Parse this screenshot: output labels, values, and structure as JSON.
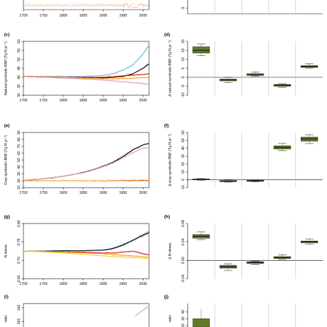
{
  "palette": {
    "observed": "#000000",
    "exp_a": "#6ab7e6",
    "exp_b": "#e8a0a0",
    "exp_c": "#d62020",
    "exp_d": "#f4a020",
    "exp_e": "#f0d040",
    "box_fill": "#5f7a2a",
    "box_fill_edge": "#2e3a12",
    "separator": "#b0b0b0"
  },
  "chart_data": [
    {
      "panel": "(c)",
      "type": "line",
      "ylabel": "Natural symbiotic BNF (Tg N yr⁻¹)",
      "xlim": [
        1700,
        2015
      ],
      "ylim": [
        30,
        60
      ],
      "xticks": [
        1700,
        1750,
        1800,
        1850,
        1900,
        1950,
        2000
      ],
      "yticks": [
        30,
        35,
        40,
        45,
        50,
        55,
        60
      ],
      "series": [
        {
          "color_key": "exp_a",
          "x": [
            1700,
            1750,
            1800,
            1850,
            1900,
            1925,
            1950,
            1975,
            2000,
            2015
          ],
          "y": [
            40.5,
            40.5,
            40.5,
            40.5,
            41,
            42,
            44,
            47,
            53,
            58
          ]
        },
        {
          "color_key": "observed",
          "x": [
            1700,
            1750,
            1800,
            1850,
            1900,
            1925,
            1950,
            1975,
            2000,
            2015
          ],
          "y": [
            40.5,
            40,
            40,
            39.8,
            39.7,
            40,
            40.5,
            42,
            45,
            47.5
          ]
        },
        {
          "color_key": "exp_c",
          "x": [
            1700,
            1750,
            1800,
            1850,
            1900,
            1925,
            1950,
            1975,
            2000,
            2015
          ],
          "y": [
            40.5,
            40.3,
            40,
            40,
            40,
            40.3,
            40.8,
            41.2,
            41.5,
            42
          ]
        },
        {
          "color_key": "exp_d",
          "x": [
            1700,
            1750,
            1800,
            1850,
            1900,
            1925,
            1950,
            1975,
            2000,
            2015
          ],
          "y": [
            40.5,
            40.3,
            40,
            39.5,
            39.2,
            39.2,
            39.3,
            39.5,
            39.8,
            40
          ]
        },
        {
          "color_key": "exp_b",
          "x": [
            1700,
            1750,
            1800,
            1850,
            1900,
            1925,
            1950,
            1975,
            2000,
            2015
          ],
          "y": [
            40.5,
            40,
            39.5,
            39,
            38.5,
            38,
            37.5,
            37,
            36.5,
            36
          ]
        }
      ]
    },
    {
      "panel": "(d)",
      "type": "bar",
      "ylabel": "Δ natural symbiotic BNF (Tg N yr⁻¹)",
      "ylim": [
        -10,
        20
      ],
      "yticks": [
        -10,
        -5,
        0,
        5,
        10,
        15,
        20
      ],
      "boxes": [
        {
          "median": 15,
          "q1": 13.5,
          "q3": 17,
          "lo": 12,
          "hi": 18.5
        },
        {
          "median": -1.5,
          "q1": -2,
          "q3": -1,
          "lo": -3,
          "hi": 0
        },
        {
          "median": 1.5,
          "q1": 1,
          "q3": 2,
          "lo": 0.5,
          "hi": 3
        },
        {
          "median": -4.5,
          "q1": -5,
          "q3": -4,
          "lo": -5.5,
          "hi": -3.5
        },
        {
          "median": 6,
          "q1": 5.5,
          "q3": 6.5,
          "lo": 5,
          "hi": 7.5
        }
      ]
    },
    {
      "panel": "(e)",
      "type": "line",
      "ylabel": "Crop symbiotic BNF (Tg N yr⁻¹)",
      "xlim": [
        1700,
        2015
      ],
      "ylim": [
        10,
        90
      ],
      "xticks": [
        1700,
        1750,
        1800,
        1850,
        1900,
        1950,
        2000
      ],
      "yticks": [
        10,
        20,
        30,
        40,
        50,
        60,
        70,
        80,
        90
      ],
      "series": [
        {
          "color_key": "observed",
          "x": [
            1700,
            1725,
            1750,
            1775,
            1800,
            1825,
            1850,
            1875,
            1900,
            1925,
            1950,
            1975,
            2000,
            2015
          ],
          "y": [
            20.5,
            21.5,
            23,
            24.5,
            26.5,
            29,
            32,
            36,
            41,
            47,
            55,
            65,
            72,
            74
          ]
        },
        {
          "color_key": "exp_b",
          "x": [
            1700,
            1725,
            1750,
            1775,
            1800,
            1825,
            1850,
            1875,
            1900,
            1925,
            1950,
            1975,
            2000,
            2015
          ],
          "y": [
            20.5,
            21.5,
            23,
            24.5,
            26.5,
            29,
            31.5,
            35.5,
            40.5,
            46,
            53,
            61,
            67,
            68
          ]
        },
        {
          "color_key": "exp_c",
          "x": [
            1700,
            1800,
            1900,
            2000,
            2015
          ],
          "y": [
            20,
            20,
            20,
            20.5,
            20.5
          ]
        },
        {
          "color_key": "exp_d",
          "x": [
            1700,
            1800,
            1900,
            2000,
            2015
          ],
          "y": [
            20,
            20,
            20,
            20,
            20
          ]
        }
      ]
    },
    {
      "panel": "(f)",
      "type": "bar",
      "ylabel": "Δ crop symbiotic BNF (Tg N yr⁻¹)",
      "ylim": [
        -10,
        60
      ],
      "yticks": [
        -10,
        0,
        10,
        20,
        30,
        40,
        50,
        60
      ],
      "boxes": [
        {
          "median": 0.5,
          "q1": 0,
          "q3": 1,
          "lo": -0.5,
          "hi": 1.5
        },
        {
          "median": -1.5,
          "q1": -2.5,
          "q3": -1,
          "lo": -3,
          "hi": 0
        },
        {
          "median": -1.5,
          "q1": -2,
          "q3": -0.5,
          "lo": -2.5,
          "hi": 0
        },
        {
          "median": 41,
          "q1": 39,
          "q3": 43,
          "lo": 37,
          "hi": 46
        },
        {
          "median": 52,
          "q1": 49,
          "q3": 54,
          "lo": 46,
          "hi": 57
        }
      ]
    },
    {
      "panel": "(g)",
      "type": "line",
      "ylabel": "N stress",
      "xlim": [
        1700,
        2015
      ],
      "ylim": [
        0.65,
        0.8
      ],
      "xticks": [
        1700,
        1750,
        1800,
        1850,
        1900,
        1950,
        2000
      ],
      "yticks": [
        "0.65",
        "0.70",
        "0.75",
        "0.80"
      ],
      "series": [
        {
          "color_key": "exp_a",
          "x": [
            1700,
            1750,
            1800,
            1850,
            1900,
            1925,
            1950,
            1975,
            2000,
            2015
          ],
          "y": [
            0.725,
            0.725,
            0.726,
            0.726,
            0.728,
            0.732,
            0.74,
            0.755,
            0.77,
            0.78
          ]
        },
        {
          "color_key": "observed",
          "x": [
            1700,
            1750,
            1800,
            1850,
            1900,
            1925,
            1950,
            1975,
            2000,
            2015
          ],
          "y": [
            0.725,
            0.725,
            0.726,
            0.726,
            0.728,
            0.732,
            0.742,
            0.755,
            0.768,
            0.775
          ]
        },
        {
          "color_key": "exp_c",
          "x": [
            1700,
            1750,
            1800,
            1850,
            1900,
            1925,
            1950,
            1975,
            2000,
            2015
          ],
          "y": [
            0.725,
            0.724,
            0.723,
            0.722,
            0.72,
            0.72,
            0.722,
            0.725,
            0.718,
            0.715
          ]
        },
        {
          "color_key": "exp_d",
          "x": [
            1700,
            1750,
            1800,
            1850,
            1900,
            1925,
            1950,
            1975,
            2000,
            2015
          ],
          "y": [
            0.725,
            0.724,
            0.722,
            0.72,
            0.718,
            0.716,
            0.714,
            0.712,
            0.71,
            0.708
          ]
        },
        {
          "color_key": "exp_e",
          "x": [
            1700,
            1800,
            1900,
            2000,
            2015
          ],
          "y": [
            0.725,
            0.72,
            0.712,
            0.706,
            0.705
          ]
        }
      ]
    },
    {
      "panel": "(h)",
      "type": "bar",
      "ylabel": "Δ N stress",
      "ylim": [
        -0.04,
        0.08
      ],
      "yticks": [
        "-0.04",
        "0.00",
        "0.04",
        "0.08"
      ],
      "boxes": [
        {
          "median": 0.052,
          "q1": 0.048,
          "q3": 0.056,
          "lo": 0.045,
          "hi": 0.062
        },
        {
          "median": -0.014,
          "q1": -0.017,
          "q3": -0.011,
          "lo": -0.022,
          "hi": -0.008
        },
        {
          "median": -0.005,
          "q1": -0.007,
          "q3": -0.003,
          "lo": -0.009,
          "hi": -0.002
        },
        {
          "median": 0.006,
          "q1": 0.004,
          "q3": 0.008,
          "lo": 0.002,
          "hi": 0.012
        },
        {
          "median": 0.04,
          "q1": 0.038,
          "q3": 0.042,
          "lo": 0.035,
          "hi": 0.046
        }
      ]
    }
  ],
  "panel_a_tail": {
    "xticks": [
      1700,
      1750,
      1800,
      1850,
      1900,
      1950,
      2000
    ]
  },
  "panel_b_tail": {
    "yticks": [
      -5
    ]
  },
  "panel_i": {
    "panel": "(i)",
    "ylabel": "ratio",
    "yticks": [
      "160",
      "150"
    ]
  },
  "panel_j": {
    "panel": "(j)",
    "ylabel": "ratio",
    "yticks": [
      40,
      30,
      20
    ]
  }
}
